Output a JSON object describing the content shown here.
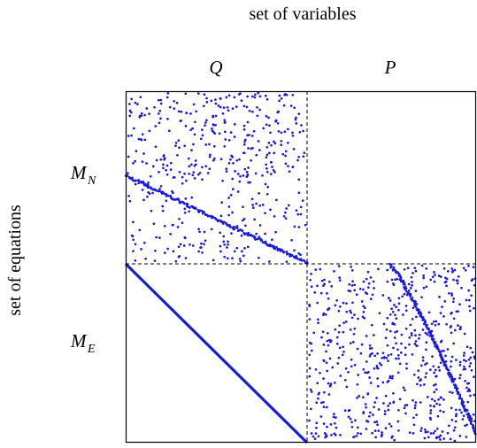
{
  "labels": {
    "top_title": "set of variables",
    "left_title": "set of equations",
    "col_q": "Q",
    "col_p": "P",
    "row_mn_base": "M",
    "row_mn_sub": "N",
    "row_me_base": "M",
    "row_me_sub": "E"
  },
  "colors": {
    "dots": "#1a1adc",
    "diagonal": "#1a1adc",
    "frame": "#000000"
  },
  "matrix": {
    "variable_blocks": [
      "Q",
      "P"
    ],
    "equation_blocks": [
      "M_N",
      "M_E"
    ],
    "block_MN_Q": "scattered nonzeros with a diagonal band",
    "block_MN_P": "empty",
    "block_ME_Q": "full diagonal",
    "block_ME_P": "scattered nonzeros with a diagonal band"
  }
}
